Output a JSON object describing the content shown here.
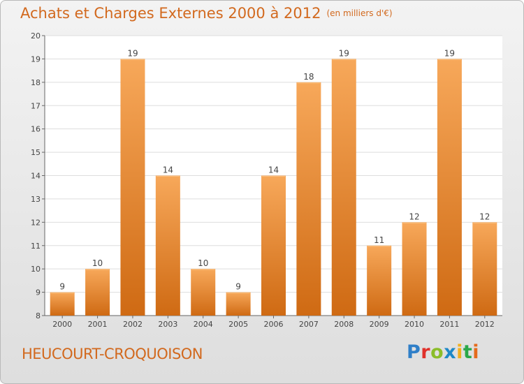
{
  "header": {
    "title": "Achats et Charges Externes 2000 à 2012",
    "subtitle": "(en milliers d'€)"
  },
  "footer": {
    "commune": "HEUCOURT-CROQUOISON",
    "logo_letters": [
      "P",
      "r",
      "o",
      "x",
      "i",
      "t",
      "i"
    ]
  },
  "colors": {
    "bar_top": "#f7a85a",
    "bar_bottom": "#cf6a13",
    "text_accent": "#d2691e"
  },
  "chart_data": {
    "type": "bar",
    "title": "Achats et Charges Externes 2000 à 2012",
    "subtitle": "(en milliers d'€)",
    "xlabel": "",
    "ylabel": "",
    "categories": [
      "2000",
      "2001",
      "2002",
      "2003",
      "2004",
      "2005",
      "2006",
      "2007",
      "2008",
      "2009",
      "2010",
      "2011",
      "2012"
    ],
    "values": [
      9,
      10,
      19,
      14,
      10,
      9,
      14,
      18,
      19,
      11,
      12,
      19,
      12
    ],
    "ylim": [
      8,
      20
    ],
    "yticks": [
      "8",
      "9",
      "10",
      "11",
      "12",
      "13",
      "14",
      "15",
      "16",
      "17",
      "18",
      "19",
      "20"
    ],
    "grid": true,
    "legend": "none"
  }
}
